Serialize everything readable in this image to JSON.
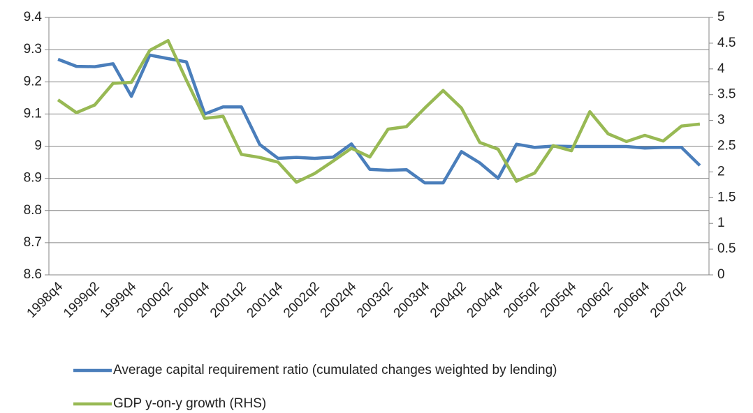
{
  "chart_data": {
    "type": "line",
    "categories": [
      "1998q4",
      null,
      "1999q2",
      null,
      "1999q4",
      null,
      "2000q2",
      null,
      "2000q4",
      null,
      "2001q2",
      null,
      "2001q4",
      null,
      "2002q2",
      null,
      "2002q4",
      null,
      "2003q2",
      null,
      "2003q4",
      null,
      "2004q2",
      null,
      "2004q4",
      null,
      "2005q2",
      null,
      "2005q4",
      null,
      "2006q2",
      null,
      "2006q4",
      null,
      "2007q2",
      null
    ],
    "series": [
      {
        "name": "Average capital requirement ratio (cumulated changes weighted by lending)",
        "color": "#4a7ebb",
        "values": [
          9.27,
          9.248,
          9.247,
          9.256,
          9.155,
          9.283,
          9.272,
          9.262,
          9.1,
          9.122,
          9.122,
          9.005,
          8.962,
          8.965,
          8.962,
          8.966,
          9.007,
          8.928,
          8.925,
          8.927,
          8.886,
          8.886,
          8.983,
          8.948,
          8.9,
          9.006,
          8.996,
          9.0,
          8.999,
          8.999,
          8.999,
          8.999,
          8.994,
          8.996,
          8.996,
          8.94
        ]
      },
      {
        "name": "GDP y-on-y growth (RHS)",
        "color": "#98b954",
        "axis": "y2",
        "values": [
          3.4,
          3.15,
          3.3,
          3.72,
          3.74,
          4.36,
          4.55,
          3.78,
          3.04,
          3.08,
          2.34,
          2.28,
          2.19,
          1.8,
          1.97,
          2.21,
          2.46,
          2.29,
          2.83,
          2.88,
          3.24,
          3.58,
          3.24,
          2.57,
          2.44,
          1.82,
          1.98,
          2.51,
          2.41,
          3.17,
          2.74,
          2.59,
          2.71,
          2.6,
          2.89,
          2.93
        ]
      }
    ],
    "ylim": [
      8.6,
      9.4
    ],
    "yticks": [
      8.6,
      8.7,
      8.8,
      8.9,
      9,
      9.1,
      9.2,
      9.3,
      9.4
    ],
    "y2lim": [
      0,
      5
    ],
    "y2ticks": [
      0,
      0.5,
      1,
      1.5,
      2,
      2.5,
      3,
      3.5,
      4,
      4.5,
      5
    ],
    "grid": true,
    "legend": "bottom"
  }
}
